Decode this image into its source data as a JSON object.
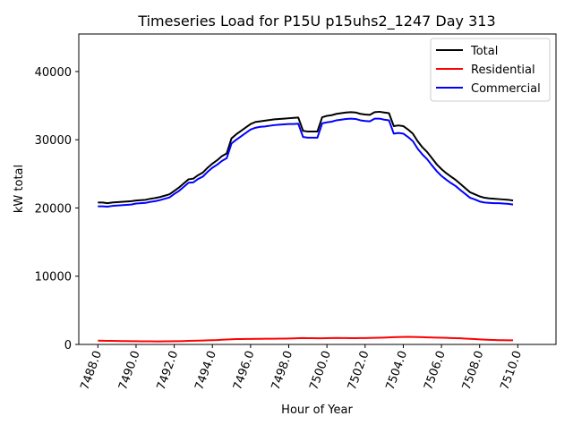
{
  "chart_data": {
    "type": "line",
    "title": "Timeseries Load for P15U p15uhs2_1247  Day 313",
    "xlabel": "Hour of Year",
    "ylabel": "kW total",
    "xlim": [
      7487.0,
      7512.0
    ],
    "ylim": [
      0,
      45500
    ],
    "xticks": [
      7488,
      7490,
      7492,
      7494,
      7496,
      7498,
      7500,
      7502,
      7504,
      7506,
      7508,
      7510
    ],
    "xtick_labels": [
      "7488.0",
      "7490.0",
      "7492.0",
      "7494.0",
      "7496.0",
      "7498.0",
      "7500.0",
      "7502.0",
      "7504.0",
      "7506.0",
      "7508.0",
      "7510.0"
    ],
    "yticks": [
      0,
      10000,
      20000,
      30000,
      40000
    ],
    "ytick_labels": [
      "0",
      "10000",
      "20000",
      "30000",
      "40000"
    ],
    "legend_position": "top-right",
    "grid": false,
    "x_start": 7488.0,
    "x_step": 0.25,
    "series": [
      {
        "name": "Total",
        "color": "#000000",
        "values": [
          20800,
          20800,
          20700,
          20800,
          20850,
          20900,
          20950,
          21000,
          21100,
          21150,
          21200,
          21350,
          21450,
          21600,
          21800,
          22000,
          22500,
          23000,
          23600,
          24200,
          24300,
          24800,
          25200,
          25900,
          26500,
          27000,
          27600,
          28000,
          30200,
          30800,
          31300,
          31800,
          32300,
          32600,
          32700,
          32800,
          32900,
          33000,
          33050,
          33100,
          33150,
          33200,
          33250,
          31300,
          31200,
          31200,
          31200,
          33300,
          33500,
          33600,
          33800,
          33900,
          34000,
          34050,
          34000,
          33800,
          33700,
          33650,
          34050,
          34100,
          34000,
          33900,
          32000,
          32100,
          32000,
          31500,
          30900,
          29800,
          28900,
          28200,
          27300,
          26400,
          25700,
          25100,
          24600,
          24100,
          23500,
          22900,
          22300,
          22000,
          21700,
          21500,
          21400,
          21350,
          21300,
          21250,
          21200,
          21100
        ]
      },
      {
        "name": "Residential",
        "color": "#ff0000",
        "values": [
          550,
          540,
          530,
          520,
          510,
          500,
          490,
          480,
          470,
          465,
          460,
          455,
          450,
          450,
          455,
          460,
          470,
          480,
          500,
          520,
          540,
          560,
          580,
          600,
          620,
          640,
          680,
          720,
          760,
          780,
          790,
          800,
          810,
          820,
          820,
          830,
          830,
          840,
          850,
          860,
          870,
          890,
          910,
          930,
          920,
          910,
          900,
          900,
          920,
          940,
          950,
          940,
          930,
          920,
          920,
          930,
          940,
          950,
          960,
          980,
          1000,
          1030,
          1060,
          1080,
          1100,
          1120,
          1100,
          1080,
          1060,
          1040,
          1020,
          1000,
          980,
          960,
          940,
          920,
          900,
          860,
          820,
          780,
          740,
          700,
          670,
          650,
          630,
          620,
          610,
          600
        ]
      },
      {
        "name": "Commercial",
        "color": "#0000ff",
        "values": [
          20250,
          20250,
          20200,
          20300,
          20350,
          20400,
          20450,
          20500,
          20650,
          20700,
          20750,
          20900,
          21000,
          21150,
          21350,
          21550,
          22050,
          22500,
          23100,
          23700,
          23750,
          24250,
          24600,
          25300,
          25900,
          26350,
          26900,
          27300,
          29450,
          30000,
          30500,
          31000,
          31500,
          31750,
          31900,
          31950,
          32050,
          32150,
          32200,
          32250,
          32300,
          32300,
          32350,
          30400,
          30300,
          30300,
          30300,
          32400,
          32550,
          32650,
          32850,
          32950,
          33050,
          33100,
          33050,
          32850,
          32750,
          32700,
          33100,
          33100,
          32950,
          32850,
          30900,
          31000,
          30900,
          30400,
          29800,
          28700,
          27850,
          27150,
          26250,
          25400,
          24700,
          24150,
          23650,
          23200,
          22600,
          22050,
          21500,
          21250,
          20950,
          20800,
          20750,
          20700,
          20700,
          20650,
          20600,
          20500
        ]
      }
    ]
  }
}
